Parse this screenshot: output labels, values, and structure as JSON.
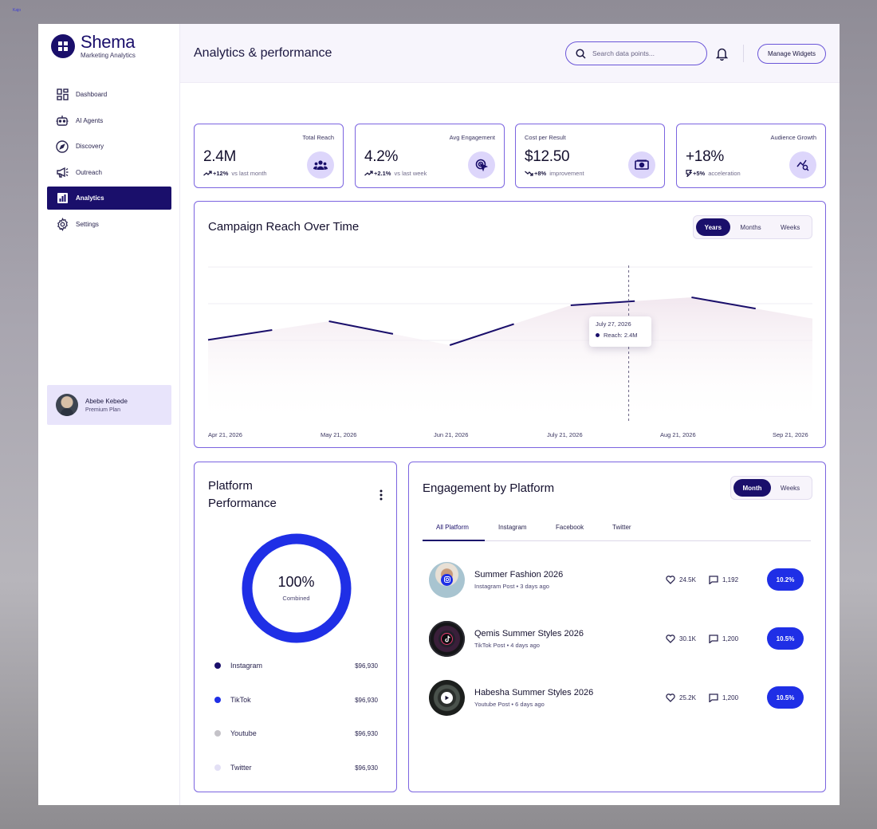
{
  "corner_text": "Kajo",
  "brand": {
    "name": "Shema",
    "subtitle": "Marketing Analytics"
  },
  "nav": [
    {
      "label": "Dashboard",
      "icon": "dashboard-grid-icon",
      "active": false
    },
    {
      "label": "AI Agents",
      "icon": "robot-icon",
      "active": false
    },
    {
      "label": "Discovery",
      "icon": "compass-icon",
      "active": false
    },
    {
      "label": "Outreach",
      "icon": "megaphone-icon",
      "active": false
    },
    {
      "label": "Analytics",
      "icon": "bar-chart-icon",
      "active": true
    },
    {
      "label": "Settings",
      "icon": "gear-icon",
      "active": false
    }
  ],
  "profile": {
    "name": "Abebe Kebede",
    "plan": "Premium Plan"
  },
  "header": {
    "title": "Analytics & performance",
    "search_placeholder": "Search data points...",
    "manage_label": "Manage Widgets"
  },
  "stats": [
    {
      "label": "Total Reach",
      "value": "2.4M",
      "delta": "+12%",
      "note": "vs last month",
      "icon": "people-icon"
    },
    {
      "label": "Avg Engagement",
      "value": "4.2%",
      "delta": "+2.1%",
      "note": "vs last week",
      "icon": "target-cursor-icon"
    },
    {
      "label": "Cost per Result",
      "value": "$12.50",
      "delta": "+8%",
      "note": "improvement",
      "icon": "cash-icon"
    },
    {
      "label": "Audience Growth",
      "value": "+18%",
      "delta": "+5%",
      "note": "acceleration",
      "icon": "growth-search-icon"
    }
  ],
  "reach_chart": {
    "title": "Campaign Reach Over Time",
    "ranges": [
      "Years",
      "Months",
      "Weeks"
    ],
    "active_range": "Years",
    "tooltip": {
      "date": "July 27, 2026",
      "label": "Reach: 2.4M"
    }
  },
  "chart_data": {
    "type": "line",
    "title": "Campaign Reach Over Time",
    "x": [
      "Apr 21, 2026",
      "May 21, 2026",
      "Jun 21, 2026",
      "July 21, 2026",
      "Aug 21, 2026",
      "Sep 21, 2026"
    ],
    "series": [
      {
        "values": [
          1.6,
          1.95,
          1.5,
          2.25,
          2.4,
          2.0
        ]
      }
    ],
    "highlight": {
      "x": "July 27, 2026",
      "value": "2.4M"
    },
    "grid": true
  },
  "platform_performance": {
    "title_line1": "Platform",
    "title_line2": "Performance",
    "total_pct": "100%",
    "total_label": "Combined",
    "items": [
      {
        "name": "Instagram",
        "amount": "$96,930",
        "color": "#1a0f6b"
      },
      {
        "name": "TikTok",
        "amount": "$96,930",
        "color": "#1f2fe6"
      },
      {
        "name": "Youtube",
        "amount": "$96,930",
        "color": "#c4c2c8"
      },
      {
        "name": "Twitter",
        "amount": "$96,930",
        "color": "#e3e0f5"
      }
    ]
  },
  "engagement": {
    "title": "Engagement by Platform",
    "ranges": [
      "Month",
      "Weeks"
    ],
    "active_range": "Month",
    "tabs": [
      "All Platform",
      "Instagram",
      "Facebook",
      "Twitter"
    ],
    "active_tab": "All Platform",
    "posts": [
      {
        "title": "Summer Fashion 2026",
        "meta": "Instagram Post • 3 days ago",
        "likes": "24.5K",
        "comments": "1,192",
        "rate": "10.2%",
        "badge_icon": "instagram-icon"
      },
      {
        "title": "Qemis Summer Styles 2026",
        "meta": "TikTok Post • 4 days ago",
        "likes": "30.1K",
        "comments": "1,200",
        "rate": "10.5%",
        "badge_icon": "tiktok-icon"
      },
      {
        "title": "Habesha Summer Styles 2026",
        "meta": "Youtube Post • 6 days ago",
        "likes": "25.2K",
        "comments": "1,200",
        "rate": "10.5%",
        "badge_icon": "youtube-play-icon"
      }
    ]
  },
  "colors": {
    "brand": "#1a0f6b",
    "accent_border": "#7b64e0",
    "rate_blue": "#1f2fe6",
    "icon_bg": "#ddd6fb"
  }
}
